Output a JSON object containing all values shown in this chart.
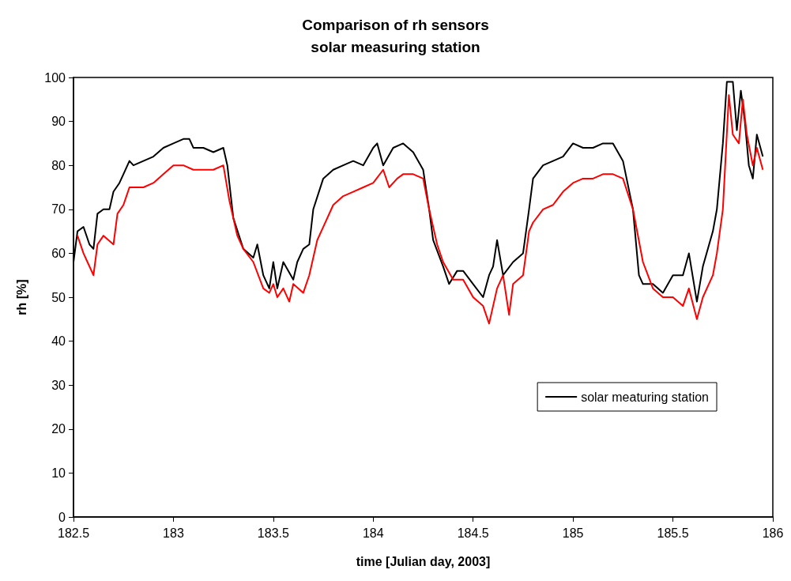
{
  "chart_data": {
    "type": "line",
    "title": "Comparison of rh sensors\nsolar measuring station",
    "xlabel": "time [Julian day, 2003]",
    "ylabel": "rh [%]",
    "xlim": [
      182.5,
      186
    ],
    "xticks": [
      182.5,
      183,
      183.5,
      184,
      184.5,
      185,
      185.5,
      186
    ],
    "ylim": [
      0,
      100
    ],
    "yticks": [
      0,
      10,
      20,
      30,
      40,
      50,
      60,
      70,
      80,
      90,
      100
    ],
    "grid": false,
    "legend": "bottom right",
    "marker": "none",
    "line_style": "solid",
    "series": [
      {
        "name": "solar meaturing station",
        "color": "#000000",
        "x": [
          182.5,
          182.52,
          182.55,
          182.58,
          182.6,
          182.62,
          182.65,
          182.68,
          182.7,
          182.73,
          182.75,
          182.78,
          182.8,
          182.85,
          182.9,
          182.95,
          183,
          183.05,
          183.08,
          183.1,
          183.15,
          183.2,
          183.25,
          183.27,
          183.3,
          183.35,
          183.4,
          183.42,
          183.45,
          183.48,
          183.5,
          183.52,
          183.55,
          183.6,
          183.62,
          183.65,
          183.68,
          183.7,
          183.75,
          183.8,
          183.85,
          183.9,
          183.95,
          184,
          184.02,
          184.05,
          184.1,
          184.15,
          184.2,
          184.25,
          184.28,
          184.3,
          184.35,
          184.38,
          184.42,
          184.45,
          184.5,
          184.55,
          184.58,
          184.6,
          184.62,
          184.65,
          184.7,
          184.75,
          184.78,
          184.8,
          184.85,
          184.9,
          184.95,
          185,
          185.05,
          185.1,
          185.15,
          185.2,
          185.25,
          185.3,
          185.33,
          185.35,
          185.4,
          185.45,
          185.5,
          185.55,
          185.58,
          185.62,
          185.65,
          185.7,
          185.72,
          185.75,
          185.77,
          185.8,
          185.82,
          185.84,
          185.86,
          185.88,
          185.9,
          185.92,
          185.95
        ],
        "values": [
          58,
          65,
          66,
          62,
          61,
          69,
          70,
          70,
          74,
          76,
          78,
          81,
          80,
          81,
          82,
          84,
          85,
          86,
          86,
          84,
          84,
          83,
          84,
          80,
          68,
          61,
          59,
          62,
          55,
          52,
          58,
          52,
          58,
          54,
          58,
          61,
          62,
          70,
          77,
          79,
          80,
          81,
          80,
          84,
          85,
          80,
          84,
          85,
          83,
          79,
          70,
          63,
          57,
          53,
          56,
          56,
          53,
          50,
          55,
          57,
          63,
          55,
          58,
          60,
          70,
          77,
          80,
          81,
          82,
          85,
          84,
          84,
          85,
          85,
          81,
          70,
          55,
          53,
          53,
          51,
          55,
          55,
          60,
          49,
          57,
          65,
          70,
          85,
          99,
          99,
          88,
          97,
          90,
          80,
          77,
          87,
          82
        ]
      },
      {
        "color": "#ff0000",
        "x": [
          182.52,
          182.55,
          182.57,
          182.6,
          182.62,
          182.65,
          182.7,
          182.72,
          182.75,
          182.78,
          182.85,
          182.9,
          182.95,
          183,
          183.05,
          183.1,
          183.15,
          183.2,
          183.25,
          183.28,
          183.32,
          183.35,
          183.4,
          183.45,
          183.48,
          183.5,
          183.52,
          183.55,
          183.58,
          183.6,
          183.65,
          183.68,
          183.72,
          183.75,
          183.8,
          183.85,
          183.9,
          183.95,
          184,
          184.05,
          184.08,
          184.12,
          184.15,
          184.2,
          184.25,
          184.28,
          184.32,
          184.35,
          184.4,
          184.45,
          184.5,
          184.55,
          184.58,
          184.62,
          184.65,
          184.68,
          184.7,
          184.75,
          184.78,
          184.8,
          184.85,
          184.9,
          184.95,
          185,
          185.05,
          185.1,
          185.15,
          185.2,
          185.25,
          185.3,
          185.35,
          185.4,
          185.45,
          185.5,
          185.55,
          185.58,
          185.62,
          185.65,
          185.7,
          185.72,
          185.75,
          185.78,
          185.8,
          185.83,
          185.85,
          185.87,
          185.9,
          185.92,
          185.95
        ],
        "values": [
          64,
          60,
          58,
          55,
          62,
          64,
          62,
          69,
          71,
          75,
          75,
          76,
          78,
          80,
          80,
          79,
          79,
          79,
          80,
          72,
          64,
          61,
          58,
          52,
          51,
          53,
          50,
          52,
          49,
          53,
          51,
          55,
          63,
          66,
          71,
          73,
          74,
          75,
          76,
          79,
          75,
          77,
          78,
          78,
          77,
          70,
          62,
          58,
          54,
          54,
          50,
          48,
          44,
          52,
          55,
          46,
          53,
          55,
          65,
          67,
          70,
          71,
          74,
          76,
          77,
          77,
          78,
          78,
          77,
          70,
          58,
          52,
          50,
          50,
          48,
          52,
          45,
          50,
          55,
          60,
          70,
          96,
          87,
          85,
          95,
          87,
          80,
          84,
          79
        ]
      }
    ]
  }
}
